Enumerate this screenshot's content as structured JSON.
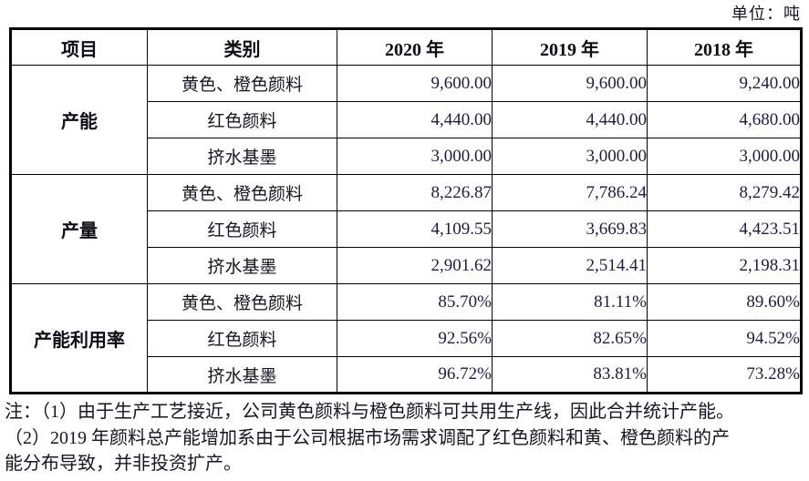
{
  "unit_label": "单位：吨",
  "table": {
    "headers": [
      "项目",
      "类别",
      "2020 年",
      "2019 年",
      "2018 年"
    ],
    "sections": [
      {
        "item": "产能",
        "rows": [
          {
            "category": "黄色、橙色颜料",
            "values": [
              "9,600.00",
              "9,600.00",
              "9,240.00"
            ]
          },
          {
            "category": "红色颜料",
            "values": [
              "4,440.00",
              "4,440.00",
              "4,680.00"
            ]
          },
          {
            "category": "挤水基墨",
            "values": [
              "3,000.00",
              "3,000.00",
              "3,000.00"
            ]
          }
        ]
      },
      {
        "item": "产量",
        "rows": [
          {
            "category": "黄色、橙色颜料",
            "values": [
              "8,226.87",
              "7,786.24",
              "8,279.42"
            ]
          },
          {
            "category": "红色颜料",
            "values": [
              "4,109.55",
              "3,669.83",
              "4,423.51"
            ]
          },
          {
            "category": "挤水基墨",
            "values": [
              "2,901.62",
              "2,514.41",
              "2,198.31"
            ]
          }
        ]
      },
      {
        "item": "产能利用率",
        "rows": [
          {
            "category": "黄色、橙色颜料",
            "values": [
              "85.70%",
              "81.11%",
              "89.60%"
            ]
          },
          {
            "category": "红色颜料",
            "values": [
              "92.56%",
              "82.65%",
              "94.52%"
            ]
          },
          {
            "category": "挤水基墨",
            "values": [
              "96.72%",
              "83.81%",
              "73.28%"
            ]
          }
        ]
      }
    ]
  },
  "notes": {
    "lines": [
      "注：（1）由于生产工艺接近，公司黄色颜料与橙色颜料可共用生产线，因此合并统计产能。",
      "（2）2019 年颜料总产能增加系由于公司根据市场需求调配了红色颜料和黄、橙色颜料的产",
      "能分布导致，并非投资扩产。"
    ]
  },
  "colors": {
    "background": "#ffffff",
    "border": "#000000",
    "text": "#16161f",
    "number_text": "#1d1d3c"
  }
}
